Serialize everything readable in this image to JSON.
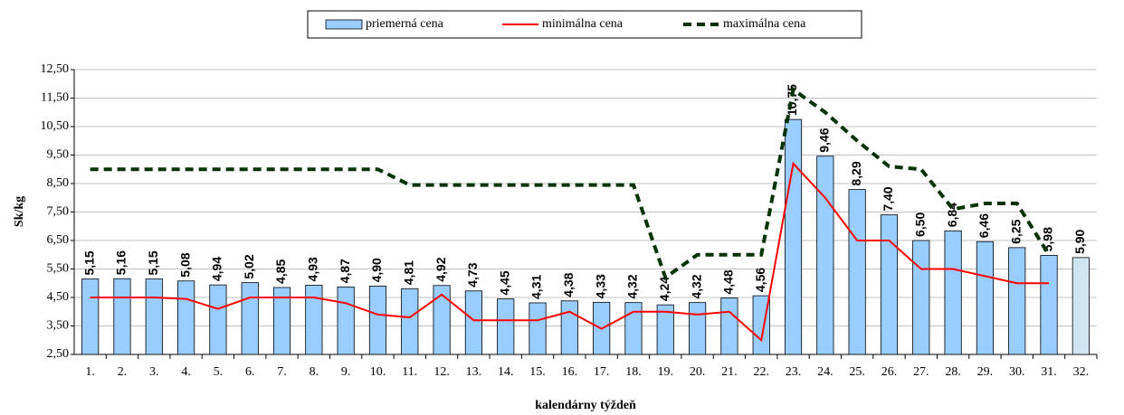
{
  "chart_data": {
    "type": "bar_line",
    "x_label": "kalendárny týždeň",
    "y_label": "Sk/kg",
    "categories": [
      "1.",
      "2.",
      "3.",
      "4.",
      "5.",
      "6.",
      "7.",
      "8.",
      "9.",
      "10.",
      "11.",
      "12.",
      "13.",
      "14.",
      "15.",
      "16.",
      "17.",
      "18.",
      "19.",
      "20.",
      "21.",
      "22.",
      "23.",
      "24.",
      "25.",
      "26.",
      "27.",
      "28.",
      "29.",
      "30.",
      "31.",
      "32."
    ],
    "series": [
      {
        "name": "priemerná cena",
        "kind": "bar",
        "color": "#99ccff",
        "colors": [
          "#99ccff",
          "#99ccff",
          "#99ccff",
          "#99ccff",
          "#99ccff",
          "#99ccff",
          "#99ccff",
          "#99ccff",
          "#99ccff",
          "#99ccff",
          "#99ccff",
          "#99ccff",
          "#99ccff",
          "#99ccff",
          "#99ccff",
          "#99ccff",
          "#99ccff",
          "#99ccff",
          "#99ccff",
          "#99ccff",
          "#99ccff",
          "#99ccff",
          "#99ccff",
          "#99ccff",
          "#99ccff",
          "#99ccff",
          "#99ccff",
          "#99ccff",
          "#99ccff",
          "#99ccff",
          "#99ccff",
          "#cfe6f2"
        ],
        "values": [
          5.15,
          5.16,
          5.15,
          5.08,
          4.94,
          5.02,
          4.85,
          4.93,
          4.87,
          4.9,
          4.81,
          4.92,
          4.73,
          4.45,
          4.31,
          4.38,
          4.33,
          4.32,
          4.24,
          4.32,
          4.48,
          4.56,
          10.75,
          9.46,
          8.29,
          7.4,
          6.5,
          6.84,
          6.46,
          6.25,
          5.98,
          5.9
        ],
        "value_labels": [
          "5,15",
          "5,16",
          "5,15",
          "5,08",
          "4,94",
          "5,02",
          "4,85",
          "4,93",
          "4,87",
          "4,90",
          "4,81",
          "4,92",
          "4,73",
          "4,45",
          "4,31",
          "4,38",
          "4,33",
          "4,32",
          "4,24",
          "4,32",
          "4,48",
          "4,56",
          "10,75",
          "9,46",
          "8,29",
          "7,40",
          "6,50",
          "6,84",
          "6,46",
          "6,25",
          "5,98",
          "5,90"
        ]
      },
      {
        "name": "minimálna cena",
        "kind": "line",
        "color": "#ff0000",
        "values": [
          4.5,
          4.5,
          4.5,
          4.45,
          4.1,
          4.5,
          4.5,
          4.5,
          4.3,
          3.9,
          3.8,
          4.6,
          3.7,
          3.7,
          3.7,
          4.0,
          3.4,
          4.0,
          4.0,
          3.9,
          4.0,
          3.0,
          9.2,
          8.0,
          6.5,
          6.5,
          5.5,
          5.5,
          5.25,
          5.0,
          5.0,
          null
        ]
      },
      {
        "name": "maximálna cena",
        "kind": "dashed",
        "color": "#003300",
        "values": [
          9.0,
          9.0,
          9.0,
          9.0,
          9.0,
          9.0,
          9.0,
          9.0,
          9.0,
          9.0,
          8.45,
          8.45,
          8.45,
          8.45,
          8.45,
          8.45,
          8.45,
          8.45,
          5.2,
          6.0,
          6.0,
          6.0,
          11.8,
          11.0,
          10.0,
          9.1,
          9.0,
          7.6,
          7.8,
          7.8,
          6.0,
          null
        ]
      }
    ],
    "ylim": [
      2.5,
      12.5
    ],
    "yticks": [
      {
        "value": 2.5,
        "label": "2,50"
      },
      {
        "value": 3.5,
        "label": "3,50"
      },
      {
        "value": 4.5,
        "label": "4,50"
      },
      {
        "value": 5.5,
        "label": "5,50"
      },
      {
        "value": 6.5,
        "label": "6,50"
      },
      {
        "value": 7.5,
        "label": "7,50"
      },
      {
        "value": 8.5,
        "label": "8,50"
      },
      {
        "value": 9.5,
        "label": "9,50"
      },
      {
        "value": 10.5,
        "label": "10,50"
      },
      {
        "value": 11.5,
        "label": "11,50"
      },
      {
        "value": 12.5,
        "label": "12,50"
      }
    ],
    "grid": true,
    "legend": "top"
  }
}
